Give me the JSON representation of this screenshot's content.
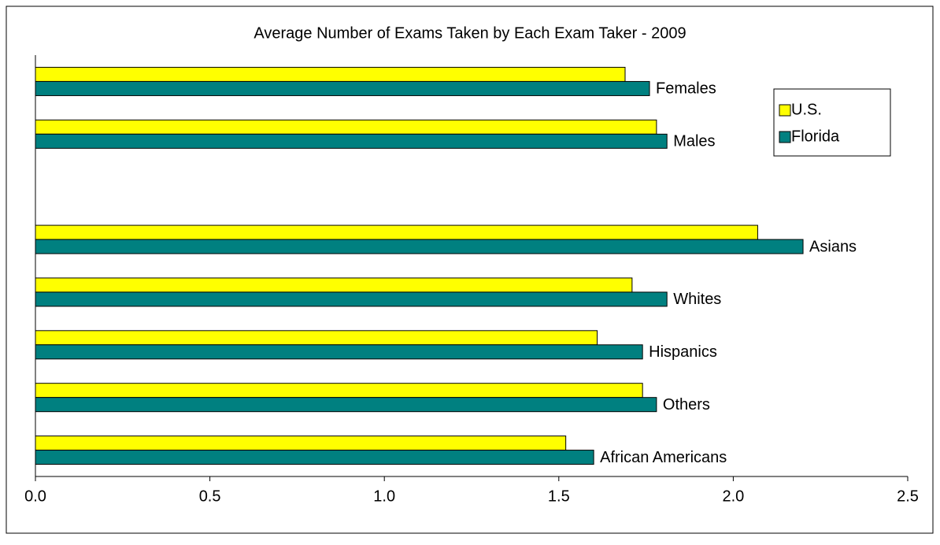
{
  "chart_data": {
    "type": "hbar",
    "title": "Average Number of Exams Taken by Each Exam Taker - 2009",
    "categories": [
      "Females",
      "Males",
      null,
      "Asians",
      "Whites",
      "Hispanics",
      "Others",
      "African Americans"
    ],
    "series": [
      {
        "name": "U.S.",
        "color": "#ffff00",
        "values": [
          1.69,
          1.78,
          null,
          2.07,
          1.71,
          1.61,
          1.74,
          1.52
        ]
      },
      {
        "name": "Florida",
        "color": "#008080",
        "values": [
          1.76,
          1.81,
          null,
          2.2,
          1.81,
          1.74,
          1.78,
          1.6
        ]
      }
    ],
    "xlim": [
      0,
      2.5
    ],
    "xticks": [
      {
        "value": 0,
        "label": "0.0"
      },
      0.5,
      {
        "value": 1,
        "label": "1.0"
      },
      1.5,
      {
        "value": 2,
        "label": "2.0"
      },
      2.5
    ],
    "legend": "upper right"
  }
}
